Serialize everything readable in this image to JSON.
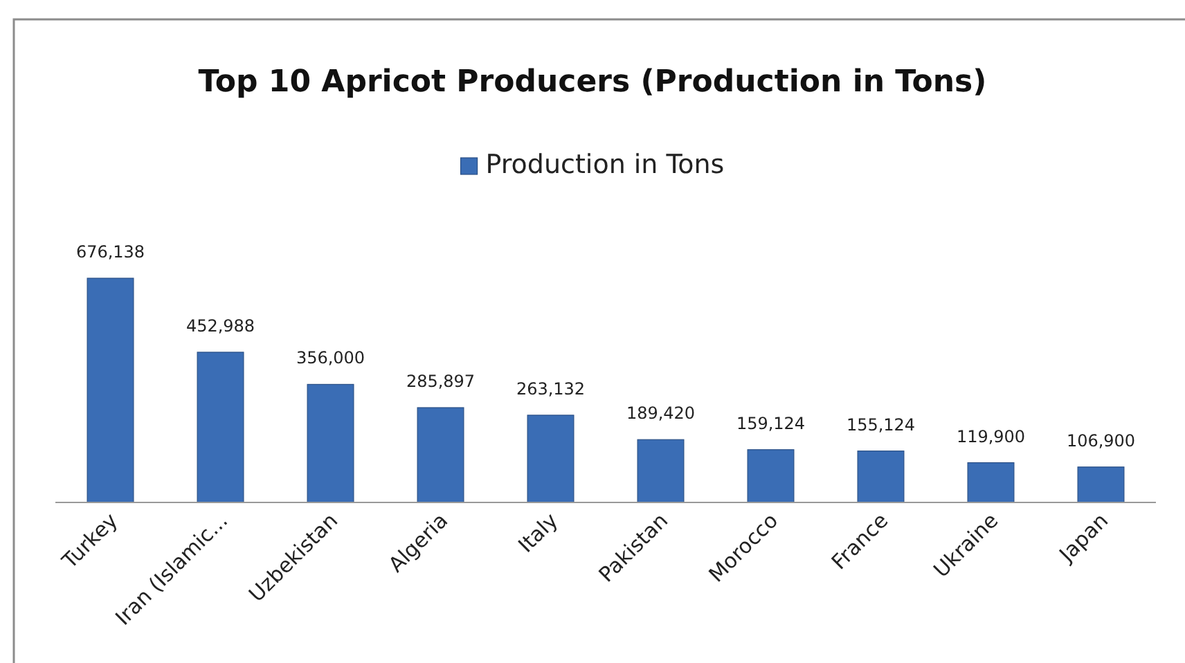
{
  "chart_data": {
    "type": "bar",
    "title": "Top 10 Apricot Producers (Production in Tons)",
    "categories": [
      "Turkey",
      "Iran (Islamic...",
      "Uzbekistan",
      "Algeria",
      "Italy",
      "Pakistan",
      "Morocco",
      "France",
      "Ukraine",
      "Japan"
    ],
    "series": [
      {
        "name": "Production in Tons",
        "color": "#3a6db5",
        "values": [
          676138,
          452988,
          356000,
          285897,
          263132,
          189420,
          159124,
          155124,
          119900,
          106900
        ],
        "value_labels": [
          "676,138",
          "452,988",
          "356,000",
          "285,897",
          "263,132",
          "189,420",
          "159,124",
          "155,124",
          "119,900",
          "106,900"
        ]
      }
    ],
    "legend": "top"
  }
}
